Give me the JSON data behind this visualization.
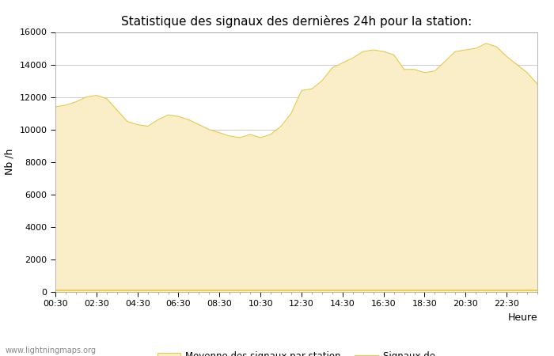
{
  "title": "Statistique des signaux des dernières 24h pour la station:",
  "xlabel": "Heure",
  "ylabel": "Nb /h",
  "xlim": [
    0,
    23.5
  ],
  "ylim": [
    0,
    16000
  ],
  "yticks": [
    0,
    2000,
    4000,
    6000,
    8000,
    10000,
    12000,
    14000,
    16000
  ],
  "xtick_labels": [
    "00:30",
    "02:30",
    "04:30",
    "06:30",
    "08:30",
    "10:30",
    "12:30",
    "14:30",
    "16:30",
    "18:30",
    "20:30",
    "22:30"
  ],
  "xtick_positions": [
    0,
    2,
    4,
    6,
    8,
    10,
    12,
    14,
    16,
    18,
    20,
    22
  ],
  "times": [
    0,
    0.5,
    1,
    1.5,
    2,
    2.5,
    3,
    3.5,
    4,
    4.5,
    5,
    5.5,
    6,
    6.5,
    7,
    7.5,
    8,
    8.5,
    9,
    9.5,
    10,
    10.5,
    11,
    11.5,
    12,
    12.5,
    13,
    13.5,
    14,
    14.5,
    15,
    15.5,
    16,
    16.5,
    17,
    17.5,
    18,
    18.5,
    19,
    19.5,
    20,
    20.5,
    21,
    21.5,
    22,
    22.5,
    23,
    23.5
  ],
  "avg_values": [
    11400,
    11500,
    11700,
    12000,
    12100,
    11900,
    11200,
    10500,
    10300,
    10200,
    10600,
    10900,
    10800,
    10600,
    10300,
    10000,
    9800,
    9600,
    9500,
    9700,
    9500,
    9700,
    10200,
    11000,
    12400,
    12500,
    13000,
    13800,
    14100,
    14400,
    14800,
    14900,
    14800,
    14600,
    13700,
    13700,
    13500,
    13600,
    14200,
    14800,
    14900,
    15000,
    15300,
    15100,
    14500,
    14000,
    13500,
    12800
  ],
  "signal_values": [
    100,
    100,
    100,
    100,
    100,
    100,
    100,
    100,
    100,
    100,
    100,
    100,
    100,
    100,
    100,
    100,
    100,
    100,
    100,
    100,
    100,
    100,
    100,
    100,
    100,
    100,
    100,
    100,
    100,
    100,
    100,
    100,
    100,
    100,
    100,
    100,
    100,
    100,
    100,
    100,
    100,
    100,
    100,
    100,
    100,
    100,
    100,
    100
  ],
  "fill_color": "#FAEEC8",
  "fill_edge_color": "#E8C840",
  "line_color": "#E8C840",
  "bg_color": "#FFFFFF",
  "grid_color": "#CCCCCC",
  "title_fontsize": 11,
  "axis_fontsize": 9,
  "tick_fontsize": 8,
  "legend_label_avg": "Moyenne des signaux par station",
  "legend_label_sig": "Signaux de",
  "watermark": "www.lightningmaps.org"
}
